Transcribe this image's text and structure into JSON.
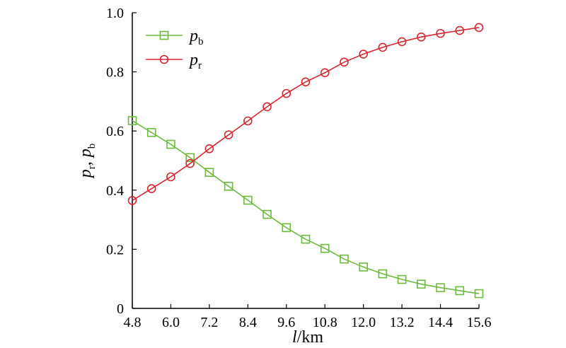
{
  "chart_data": {
    "type": "line",
    "x": [
      4.8,
      5.4,
      6.0,
      6.6,
      7.2,
      7.8,
      8.4,
      9.0,
      9.6,
      10.2,
      10.8,
      11.4,
      12.0,
      12.6,
      13.2,
      13.8,
      14.4,
      15.0,
      15.6
    ],
    "series": [
      {
        "name": "p_b",
        "name_base": "p",
        "name_sub": "b",
        "marker": "square",
        "color": "#6cbb3c",
        "values": [
          0.635,
          0.595,
          0.555,
          0.51,
          0.46,
          0.413,
          0.366,
          0.318,
          0.273,
          0.234,
          0.203,
          0.167,
          0.14,
          0.117,
          0.098,
          0.082,
          0.07,
          0.06,
          0.05
        ]
      },
      {
        "name": "p_r",
        "name_base": "p",
        "name_sub": "r",
        "marker": "circle",
        "color": "#d7262e",
        "values": [
          0.365,
          0.405,
          0.445,
          0.49,
          0.54,
          0.587,
          0.634,
          0.682,
          0.727,
          0.766,
          0.797,
          0.833,
          0.86,
          0.883,
          0.902,
          0.918,
          0.93,
          0.94,
          0.95
        ]
      }
    ],
    "xticks": [
      4.8,
      6.0,
      7.2,
      8.4,
      9.6,
      10.8,
      12.0,
      13.2,
      14.4,
      15.6
    ],
    "xtick_labels": [
      "4.8",
      "6.0",
      "7.2",
      "8.4",
      "9.6",
      "10.8",
      "12.0",
      "13.2",
      "14.4",
      "15.6"
    ],
    "yticks": [
      0,
      0.2,
      0.4,
      0.6,
      0.8,
      1.0
    ],
    "ytick_labels": [
      "0",
      "0.2",
      "0.4",
      "0.6",
      "0.8",
      "1.0"
    ],
    "xlim": [
      4.8,
      15.6
    ],
    "ylim": [
      0,
      1.0
    ],
    "xlabel": {
      "var": "l",
      "unit": "/km"
    },
    "ylabel": {
      "p1": "p",
      "s1": "r",
      "sep": ", ",
      "p2": "p",
      "s2": "b"
    },
    "grid": false,
    "legend_position": "top-left"
  }
}
